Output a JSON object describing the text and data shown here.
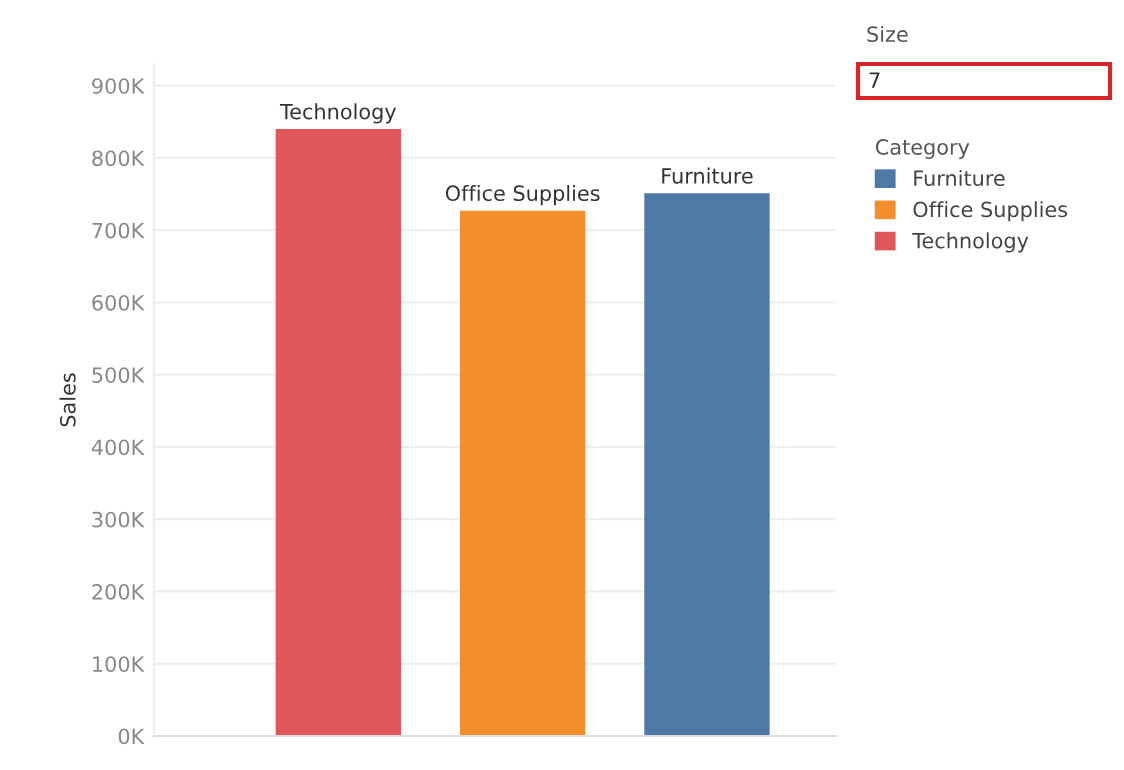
{
  "chart_data": {
    "type": "bar",
    "ylabel": "Sales",
    "categories": [
      "Technology",
      "Office Supplies",
      "Furniture"
    ],
    "series": [
      {
        "name": "Furniture",
        "color": "#4e79a7",
        "values": [
          null,
          null,
          751000
        ]
      },
      {
        "name": "Office Supplies",
        "color": "#f28e2b",
        "values": [
          null,
          727000,
          null
        ]
      },
      {
        "name": "Technology",
        "color": "#e15759",
        "values": [
          840000,
          null,
          null
        ]
      }
    ],
    "ylim": [
      0,
      930000
    ],
    "yticks": [
      {
        "value": 0,
        "label": "0K"
      },
      {
        "value": 100000,
        "label": "100K"
      },
      {
        "value": 200000,
        "label": "200K"
      },
      {
        "value": 300000,
        "label": "300K"
      },
      {
        "value": 400000,
        "label": "400K"
      },
      {
        "value": 500000,
        "label": "500K"
      },
      {
        "value": 600000,
        "label": "600K"
      },
      {
        "value": 700000,
        "label": "700K"
      },
      {
        "value": 800000,
        "label": "800K"
      },
      {
        "value": 900000,
        "label": "900K"
      }
    ],
    "grid": "y",
    "legend": "right",
    "legend_title": "Category",
    "annotations": [
      "Size",
      "7"
    ]
  }
}
